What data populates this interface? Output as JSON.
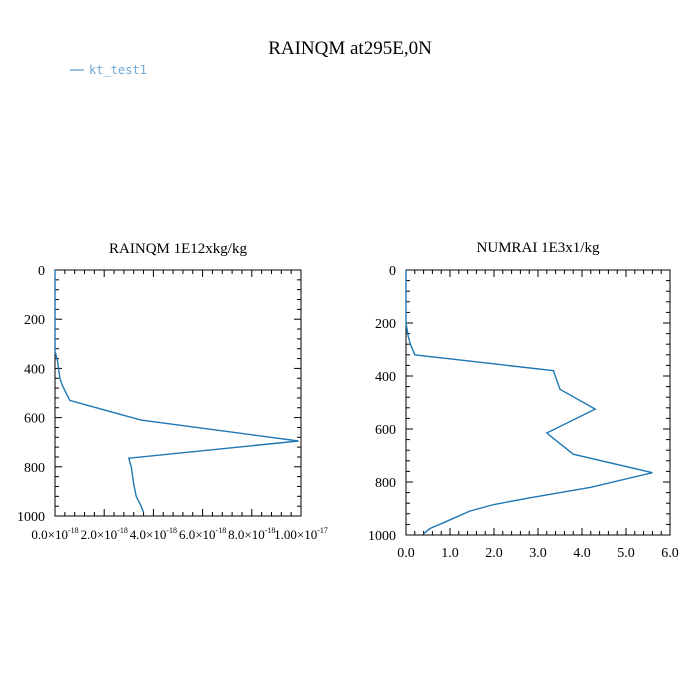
{
  "figure": {
    "title": "RAINQM at295E,0N",
    "legend": [
      {
        "name": "kt_test1",
        "color": "#6fa8d6"
      }
    ],
    "series_color": "#1f77b4"
  },
  "chart_data": [
    {
      "type": "line",
      "title": "RAINQM  1E12xkg/kg",
      "xlabel": "",
      "ylabel": "",
      "xlim": [
        0,
        1e-17
      ],
      "ylim": [
        1000,
        0
      ],
      "y_inverted": true,
      "x_ticks": [
        {
          "value": 0,
          "mantissa": "0.0×10",
          "exp": "-18"
        },
        {
          "value": 2e-18,
          "mantissa": "2.0×10",
          "exp": "-18"
        },
        {
          "value": 4e-18,
          "mantissa": "4.0×10",
          "exp": "-18"
        },
        {
          "value": 6e-18,
          "mantissa": "6.0×10",
          "exp": "-18"
        },
        {
          "value": 8e-18,
          "mantissa": "8.0×10",
          "exp": "-18"
        },
        {
          "value": 1e-17,
          "mantissa": "1.00×10",
          "exp": "-17"
        }
      ],
      "y_ticks": [
        "0",
        "200",
        "400",
        "600",
        "800",
        "1000"
      ],
      "y_tick_values": [
        0,
        200,
        400,
        600,
        800,
        1000
      ],
      "series": [
        {
          "name": "kt_test1",
          "x": [
            0,
            0,
            0,
            0,
            0,
            1e-19,
            2e-19,
            3e-19,
            6e-19,
            3.5e-18,
            9.9e-18,
            3e-18,
            3.1e-18,
            3.2e-18,
            3.3e-18,
            3.5e-18,
            3.6e-18
          ],
          "y": [
            0,
            100,
            200,
            300,
            330,
            370,
            440,
            470,
            530,
            610,
            695,
            765,
            800,
            870,
            920,
            960,
            985
          ]
        }
      ],
      "grid": false
    },
    {
      "type": "line",
      "title": "NUMRAI  1E3x1/kg",
      "xlabel": "",
      "ylabel": "",
      "xlim": [
        0,
        6
      ],
      "ylim": [
        1000,
        0
      ],
      "y_inverted": true,
      "x_ticks": [
        "0.0",
        "1.0",
        "2.0",
        "3.0",
        "4.0",
        "5.0",
        "6.0"
      ],
      "x_tick_values": [
        0,
        1,
        2,
        3,
        4,
        5,
        6
      ],
      "y_ticks": [
        "0",
        "200",
        "400",
        "600",
        "800",
        "1000"
      ],
      "y_tick_values": [
        0,
        200,
        400,
        600,
        800,
        1000
      ],
      "series": [
        {
          "name": "kt_test1",
          "x": [
            0,
            0,
            0.05,
            0.1,
            0.2,
            3.35,
            3.5,
            4.3,
            3.2,
            3.8,
            5.6,
            4.2,
            2.8,
            2.0,
            1.45,
            0.9,
            0.55,
            0.4
          ],
          "y": [
            0,
            200,
            250,
            280,
            320,
            380,
            450,
            525,
            615,
            695,
            765,
            820,
            860,
            885,
            910,
            950,
            975,
            995
          ]
        }
      ],
      "grid": false
    }
  ]
}
